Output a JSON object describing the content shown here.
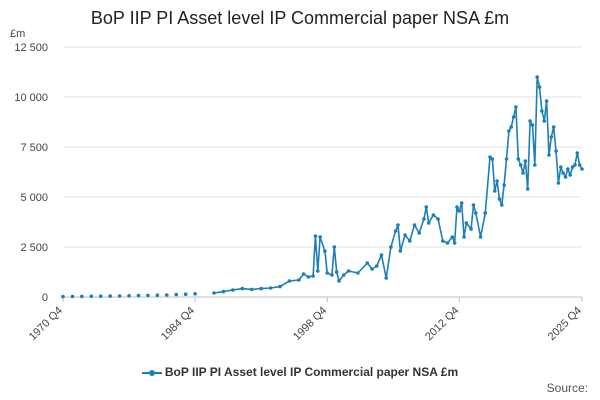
{
  "chart_data": {
    "type": "line",
    "title": "BoP IIP PI Asset level IP Commercial paper NSA £m",
    "unit": "£m",
    "ylim": [
      0,
      12500
    ],
    "yticks": [
      "0",
      "2 500",
      "5 000",
      "7 500",
      "10 000",
      "12 500"
    ],
    "ytick_values": [
      0,
      2500,
      5000,
      7500,
      10000,
      12500
    ],
    "xticks": [
      "1970 Q4",
      "1984 Q4",
      "1998 Q4",
      "2012 Q4",
      "2025 Q4"
    ],
    "xtick_values": [
      "1970 Q4",
      "1984 Q4",
      "1998 Q4",
      "2012 Q4",
      "2025 Q4"
    ],
    "grid": true,
    "legend_position": "bottom",
    "colors": {
      "series": "#1d7fb7"
    },
    "series": [
      {
        "name": "BoP IIP PI Asset level IP Commercial paper NSA £m",
        "annual_points": [
          [
            "1970 Q4",
            20
          ],
          [
            "1971 Q4",
            25
          ],
          [
            "1972 Q4",
            30
          ],
          [
            "1973 Q4",
            35
          ],
          [
            "1974 Q4",
            40
          ],
          [
            "1975 Q4",
            45
          ],
          [
            "1976 Q4",
            50
          ],
          [
            "1977 Q4",
            60
          ],
          [
            "1978 Q4",
            70
          ],
          [
            "1979 Q4",
            80
          ],
          [
            "1980 Q4",
            90
          ],
          [
            "1981 Q4",
            100
          ],
          [
            "1982 Q4",
            120
          ],
          [
            "1983 Q4",
            140
          ],
          [
            "1984 Q4",
            160
          ]
        ],
        "quarterly_points": [
          [
            "1986 Q4",
            200
          ],
          [
            "1987 Q4",
            270
          ],
          [
            "1988 Q4",
            350
          ],
          [
            "1989 Q4",
            420
          ],
          [
            "1990 Q4",
            380
          ],
          [
            "1991 Q4",
            420
          ],
          [
            "1992 Q4",
            450
          ],
          [
            "1993 Q4",
            520
          ],
          [
            "1994 Q4",
            800
          ],
          [
            "1995 Q4",
            850
          ],
          [
            "1996 Q4",
            1000
          ],
          [
            "1996 Q2",
            1150
          ],
          [
            "1997 Q2",
            1050
          ],
          [
            "1997 Q3",
            3050
          ],
          [
            "1997 Q4",
            1300
          ],
          [
            "1998 Q1",
            3000
          ],
          [
            "1998 Q3",
            2300
          ],
          [
            "1998 Q4",
            1200
          ],
          [
            "1999 Q2",
            1100
          ],
          [
            "1999 Q3",
            2500
          ],
          [
            "1999 Q4",
            1250
          ],
          [
            "2000 Q1",
            800
          ],
          [
            "2000 Q3",
            1100
          ],
          [
            "2001 Q1",
            1300
          ],
          [
            "2002 Q1",
            1200
          ],
          [
            "2003 Q1",
            1700
          ],
          [
            "2003 Q3",
            1400
          ],
          [
            "2004 Q1",
            1550
          ],
          [
            "2004 Q3",
            2100
          ],
          [
            "2005 Q1",
            950
          ],
          [
            "2005 Q3",
            2500
          ],
          [
            "2006 Q1",
            3300
          ],
          [
            "2006 Q2",
            3600
          ],
          [
            "2006 Q3",
            2300
          ],
          [
            "2007 Q1",
            3100
          ],
          [
            "2007 Q3",
            2800
          ],
          [
            "2008 Q1",
            3600
          ],
          [
            "2008 Q3",
            3200
          ],
          [
            "2009 Q1",
            3900
          ],
          [
            "2009 Q2",
            4500
          ],
          [
            "2009 Q3",
            3700
          ],
          [
            "2010 Q1",
            4100
          ],
          [
            "2010 Q3",
            3900
          ],
          [
            "2011 Q1",
            2800
          ],
          [
            "2011 Q3",
            2700
          ],
          [
            "2012 Q1",
            3000
          ],
          [
            "2012 Q2",
            2700
          ],
          [
            "2012 Q3",
            4500
          ],
          [
            "2012 Q4",
            4300
          ],
          [
            "2013 Q1",
            4700
          ],
          [
            "2013 Q2",
            3000
          ],
          [
            "2013 Q3",
            3700
          ],
          [
            "2014 Q1",
            3400
          ],
          [
            "2014 Q2",
            4600
          ],
          [
            "2014 Q3",
            4200
          ],
          [
            "2015 Q1",
            3000
          ],
          [
            "2015 Q3",
            4200
          ],
          [
            "2016 Q1",
            7000
          ],
          [
            "2016 Q2",
            6900
          ],
          [
            "2016 Q3",
            5300
          ],
          [
            "2016 Q4",
            5800
          ],
          [
            "2017 Q1",
            4900
          ],
          [
            "2017 Q2",
            4600
          ],
          [
            "2017 Q3",
            5600
          ],
          [
            "2017 Q4",
            6900
          ],
          [
            "2018 Q1",
            8300
          ],
          [
            "2018 Q2",
            8500
          ],
          [
            "2018 Q3",
            9000
          ],
          [
            "2018 Q4",
            9500
          ],
          [
            "2019 Q1",
            6900
          ],
          [
            "2019 Q2",
            6600
          ],
          [
            "2019 Q3",
            6200
          ],
          [
            "2019 Q4",
            6800
          ],
          [
            "2020 Q1",
            5400
          ],
          [
            "2020 Q2",
            8800
          ],
          [
            "2020 Q3",
            8600
          ],
          [
            "2020 Q4",
            6600
          ],
          [
            "2021 Q1",
            11000
          ],
          [
            "2021 Q2",
            10500
          ],
          [
            "2021 Q3",
            9300
          ],
          [
            "2021 Q4",
            8800
          ],
          [
            "2022 Q1",
            9800
          ],
          [
            "2022 Q2",
            7100
          ],
          [
            "2022 Q3",
            8000
          ],
          [
            "2022 Q4",
            8500
          ],
          [
            "2023 Q1",
            7300
          ],
          [
            "2023 Q2",
            5700
          ],
          [
            "2023 Q3",
            6500
          ],
          [
            "2023 Q4",
            6200
          ],
          [
            "2024 Q1",
            6000
          ],
          [
            "2024 Q2",
            6400
          ],
          [
            "2024 Q3",
            6100
          ],
          [
            "2024 Q4",
            6500
          ],
          [
            "2025 Q1",
            6600
          ],
          [
            "2025 Q2",
            7200
          ],
          [
            "2025 Q3",
            6600
          ],
          [
            "2025 Q4",
            6400
          ]
        ]
      }
    ]
  },
  "source_label": "Source:"
}
